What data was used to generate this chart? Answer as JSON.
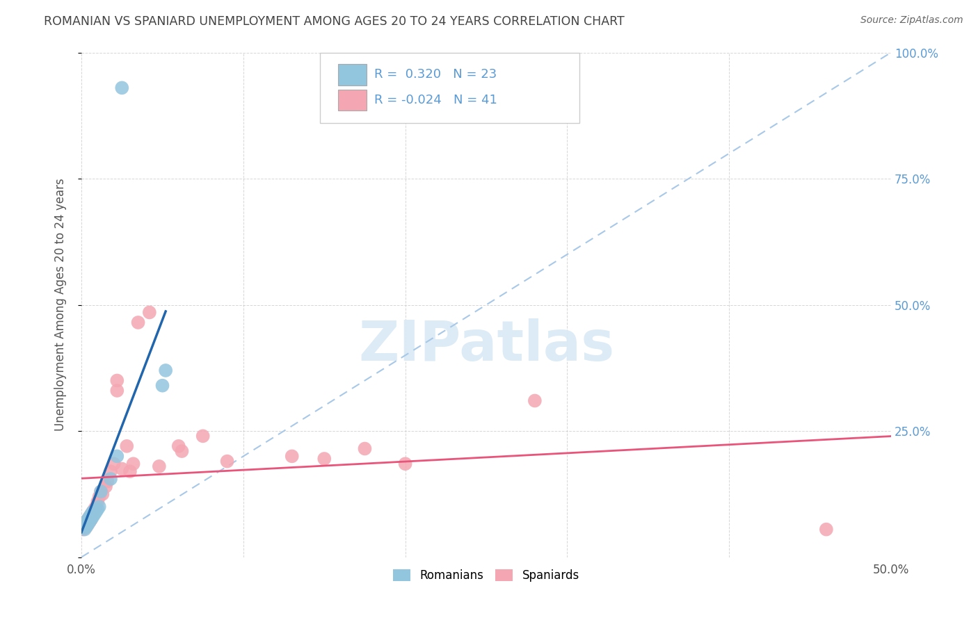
{
  "title": "ROMANIAN VS SPANIARD UNEMPLOYMENT AMONG AGES 20 TO 24 YEARS CORRELATION CHART",
  "source": "Source: ZipAtlas.com",
  "ylabel": "Unemployment Among Ages 20 to 24 years",
  "xlim": [
    0.0,
    0.5
  ],
  "ylim": [
    0.0,
    1.0
  ],
  "xticks": [
    0.0,
    0.05,
    0.1,
    0.15,
    0.2,
    0.25,
    0.3,
    0.35,
    0.4,
    0.45,
    0.5
  ],
  "xtick_labels": [
    "0.0%",
    "",
    "",
    "",
    "",
    "",
    "",
    "",
    "",
    "",
    "50.0%"
  ],
  "yticks": [
    0.0,
    0.25,
    0.5,
    0.75,
    1.0
  ],
  "ytick_right_labels": [
    "",
    "25.0%",
    "50.0%",
    "75.0%",
    "100.0%"
  ],
  "romanian_color": "#92c5de",
  "spaniard_color": "#f4a7b2",
  "regression_romanian_color": "#2166ac",
  "regression_spaniard_color": "#e8547a",
  "diagonal_color": "#a8c8e8",
  "watermark_color": "#daeaf5",
  "R_romanian": 0.32,
  "N_romanian": 23,
  "R_spaniard": -0.024,
  "N_spaniard": 41,
  "romanian_x": [
    0.001,
    0.002,
    0.002,
    0.003,
    0.003,
    0.004,
    0.004,
    0.005,
    0.005,
    0.006,
    0.006,
    0.007,
    0.007,
    0.008,
    0.009,
    0.01,
    0.011,
    0.012,
    0.018,
    0.022,
    0.05,
    0.052,
    0.025
  ],
  "romanian_y": [
    0.06,
    0.055,
    0.065,
    0.06,
    0.07,
    0.065,
    0.075,
    0.07,
    0.08,
    0.075,
    0.085,
    0.08,
    0.09,
    0.085,
    0.09,
    0.095,
    0.1,
    0.13,
    0.155,
    0.2,
    0.34,
    0.37,
    0.93
  ],
  "spaniard_x": [
    0.001,
    0.002,
    0.002,
    0.003,
    0.003,
    0.004,
    0.004,
    0.005,
    0.005,
    0.006,
    0.006,
    0.007,
    0.008,
    0.009,
    0.01,
    0.011,
    0.012,
    0.013,
    0.015,
    0.016,
    0.018,
    0.02,
    0.022,
    0.022,
    0.025,
    0.028,
    0.03,
    0.032,
    0.035,
    0.042,
    0.048,
    0.06,
    0.062,
    0.075,
    0.09,
    0.13,
    0.15,
    0.175,
    0.2,
    0.28,
    0.46
  ],
  "spaniard_y": [
    0.055,
    0.06,
    0.065,
    0.07,
    0.06,
    0.075,
    0.065,
    0.08,
    0.07,
    0.075,
    0.085,
    0.09,
    0.095,
    0.1,
    0.11,
    0.12,
    0.13,
    0.125,
    0.14,
    0.15,
    0.17,
    0.185,
    0.33,
    0.35,
    0.175,
    0.22,
    0.17,
    0.185,
    0.465,
    0.485,
    0.18,
    0.22,
    0.21,
    0.24,
    0.19,
    0.2,
    0.195,
    0.215,
    0.185,
    0.31,
    0.055
  ],
  "background_color": "#ffffff",
  "grid_color": "#cccccc",
  "title_color": "#444444",
  "axis_label_color": "#555555",
  "right_tick_color": "#5b9bd5",
  "legend_R_color": "#5b9bd5",
  "legend_N_color": "#444444"
}
